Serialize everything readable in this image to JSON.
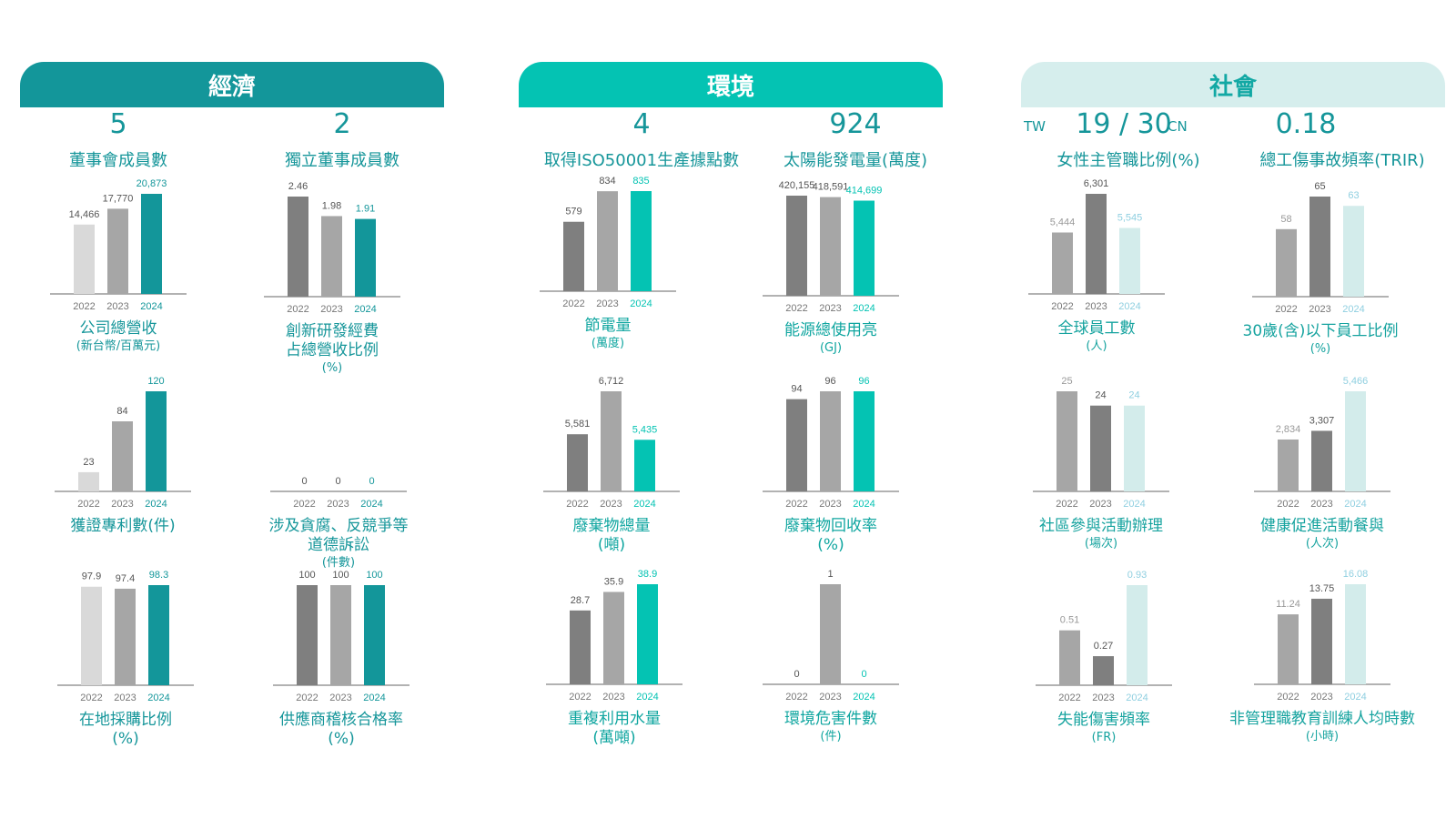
{
  "headers": {
    "economy": "經濟",
    "environment": "環境",
    "society": "社會"
  },
  "kpis": [
    {
      "value": "5",
      "label": "董事會成員數"
    },
    {
      "value": "2",
      "label": "獨立董事成員數"
    },
    {
      "value": "4",
      "label": "取得ISO50001生產據點數"
    },
    {
      "value": "924",
      "label": "太陽能發電量(萬度)"
    },
    {
      "value": "19 / 30",
      "label": "女性主管職比例(%)",
      "prefix": "TW",
      "suffix": "CN"
    },
    {
      "value": "0.18",
      "label": "總工傷事故頻率(TRIR)"
    }
  ],
  "chart_data": [
    {
      "type": "bar",
      "group": "economy",
      "title": "公司總營收",
      "unit": "(新台幣/百萬元)",
      "categories": [
        "2022",
        "2023",
        "2024"
      ],
      "values": [
        14466,
        17770,
        20873
      ],
      "labels": [
        "14,466",
        "17,770",
        "20,873"
      ]
    },
    {
      "type": "bar",
      "group": "economy",
      "title": "創新研發經費\n占總營收比例",
      "unit": "(%)",
      "categories": [
        "2022",
        "2023",
        "2024"
      ],
      "values": [
        2.46,
        1.98,
        1.91
      ],
      "labels": [
        "2.46",
        "1.98",
        "1.91"
      ]
    },
    {
      "type": "bar",
      "group": "economy",
      "title": "獲證專利數(件)",
      "unit": "",
      "categories": [
        "2022",
        "2023",
        "2024"
      ],
      "values": [
        23,
        84,
        120
      ],
      "labels": [
        "23",
        "84",
        "120"
      ]
    },
    {
      "type": "bar",
      "group": "economy",
      "title": "涉及貪腐、反競爭等\n道德訴訟",
      "unit": "(件數)",
      "categories": [
        "2022",
        "2023",
        "2024"
      ],
      "values": [
        0,
        0,
        0
      ],
      "labels": [
        "0",
        "0",
        "0"
      ]
    },
    {
      "type": "bar",
      "group": "economy",
      "title": "在地採購比例\n(%)",
      "unit": "",
      "categories": [
        "2022",
        "2023",
        "2024"
      ],
      "values": [
        97.9,
        97.4,
        98.3
      ],
      "labels": [
        "97.9",
        "97.4",
        "98.3"
      ]
    },
    {
      "type": "bar",
      "group": "economy",
      "title": "供應商稽核合格率\n(%)",
      "unit": "",
      "categories": [
        "2022",
        "2023",
        "2024"
      ],
      "values": [
        100,
        100,
        100
      ],
      "labels": [
        "100",
        "100",
        "100"
      ]
    },
    {
      "type": "bar",
      "group": "environment",
      "title": "節電量",
      "unit": "(萬度)",
      "categories": [
        "2022",
        "2023",
        "2024"
      ],
      "values": [
        579,
        834,
        835
      ],
      "labels": [
        "579",
        "834",
        "835"
      ]
    },
    {
      "type": "bar",
      "group": "environment",
      "title": "能源總使用亮",
      "unit": "(GJ)",
      "categories": [
        "2022",
        "2023",
        "2024"
      ],
      "values": [
        420155,
        418591,
        414699
      ],
      "labels": [
        "420,155",
        "418,591",
        "414,699"
      ]
    },
    {
      "type": "bar",
      "group": "environment",
      "title": "廢棄物總量\n(噸)",
      "unit": "",
      "categories": [
        "2022",
        "2023",
        "2024"
      ],
      "values": [
        5581,
        6712,
        5435
      ],
      "labels": [
        "5,581",
        "6,712",
        "5,435"
      ]
    },
    {
      "type": "bar",
      "group": "environment",
      "title": "廢棄物回收率\n(%)",
      "unit": "",
      "categories": [
        "2022",
        "2023",
        "2024"
      ],
      "values": [
        94,
        96,
        96
      ],
      "labels": [
        "94",
        "96",
        "96"
      ]
    },
    {
      "type": "bar",
      "group": "environment",
      "title": "重複利用水量\n(萬噸)",
      "unit": "",
      "categories": [
        "2022",
        "2023",
        "2024"
      ],
      "values": [
        28.7,
        35.9,
        38.9
      ],
      "labels": [
        "28.7",
        "35.9",
        "38.9"
      ]
    },
    {
      "type": "bar",
      "group": "environment",
      "title": "環境危害件數",
      "unit": "(件)",
      "categories": [
        "2022",
        "2023",
        "2024"
      ],
      "values": [
        0,
        1,
        0
      ],
      "labels": [
        "0",
        "1",
        "0"
      ]
    },
    {
      "type": "bar",
      "group": "society",
      "title": "全球員工數",
      "unit": "(人)",
      "categories": [
        "2022",
        "2023",
        "2024"
      ],
      "values": [
        5444,
        6301,
        5545
      ],
      "labels": [
        "5,444",
        "6,301",
        "5,545"
      ]
    },
    {
      "type": "bar",
      "group": "society",
      "title": "30歲(含)以下員工比例",
      "unit": "(%)",
      "categories": [
        "2022",
        "2023",
        "2024"
      ],
      "values": [
        58,
        65,
        63
      ],
      "labels": [
        "58",
        "65",
        "63"
      ]
    },
    {
      "type": "bar",
      "group": "society",
      "title": "社區參與活動辦理",
      "unit": "(場次)",
      "categories": [
        "2022",
        "2023",
        "2024"
      ],
      "values": [
        25,
        24,
        24
      ],
      "labels": [
        "25",
        "24",
        "24"
      ]
    },
    {
      "type": "bar",
      "group": "society",
      "title": "健康促進活動餐與",
      "unit": "(人次)",
      "categories": [
        "2022",
        "2023",
        "2024"
      ],
      "values": [
        2834,
        3307,
        5466
      ],
      "labels": [
        "2,834",
        "3,307",
        "5,466"
      ]
    },
    {
      "type": "bar",
      "group": "society",
      "title": "失能傷害頻率",
      "unit": "(FR)",
      "categories": [
        "2022",
        "2023",
        "2024"
      ],
      "values": [
        0.51,
        0.27,
        0.93
      ],
      "labels": [
        "0.51",
        "0.27",
        "0.93"
      ]
    },
    {
      "type": "bar",
      "group": "society",
      "title": "非管理職教育訓練人均時數",
      "unit": "(小時)",
      "categories": [
        "2022",
        "2023",
        "2024"
      ],
      "values": [
        11.24,
        13.75,
        16.08
      ],
      "labels": [
        "11.24",
        "13.75",
        "16.08"
      ]
    }
  ],
  "colors": {
    "economy": "#13969a",
    "environment": "#04c3b3",
    "society_header": "#d6eeed",
    "society_highlight": "#d3eceb",
    "society_highlight_text": "#8fcfe0",
    "dark_gray": "#7f7f7f",
    "mid_gray": "#a6a6a6",
    "light_gray": "#d9d9d9",
    "text": "#555555",
    "label_text": "#16969a"
  }
}
